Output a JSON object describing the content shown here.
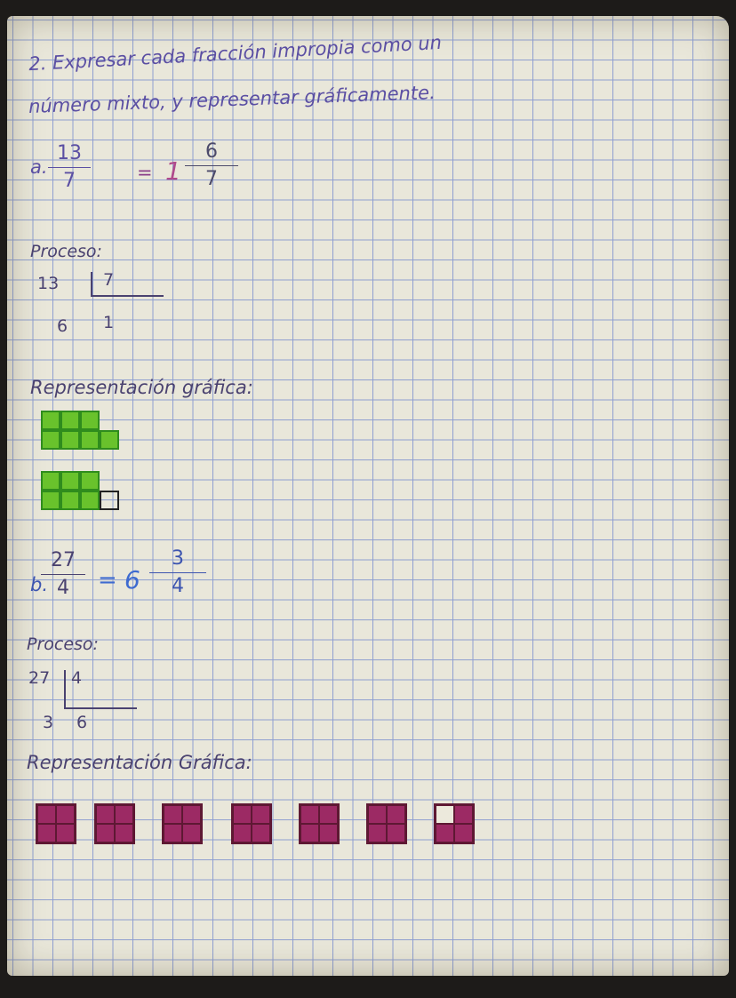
{
  "heading": {
    "line1": "2. Expresar cada fracción impropia como un",
    "line2": "número mixto, y representar gráficamente."
  },
  "part_a": {
    "label": "a.",
    "numerator": "13",
    "denominator": "7",
    "equals": "=",
    "whole": "1",
    "mixed_numerator": "6",
    "mixed_denominator": "7",
    "process_label": "Proceso:",
    "dividend": "13",
    "divisor": "7",
    "remainder": "6",
    "quotient": "1",
    "graph_label": "Representación gráfica:",
    "fill_color": "#69c22c"
  },
  "part_b": {
    "label": "b.",
    "numerator": "27",
    "denominator": "4",
    "equals": "=",
    "whole": "6",
    "mixed_numerator": "3",
    "mixed_denominator": "4",
    "process_label": "Proceso:",
    "dividend": "27",
    "divisor": "4",
    "remainder": "3",
    "quotient": "6",
    "graph_label": "Representación Gráfica:",
    "fill_color": "#9c2a64"
  }
}
